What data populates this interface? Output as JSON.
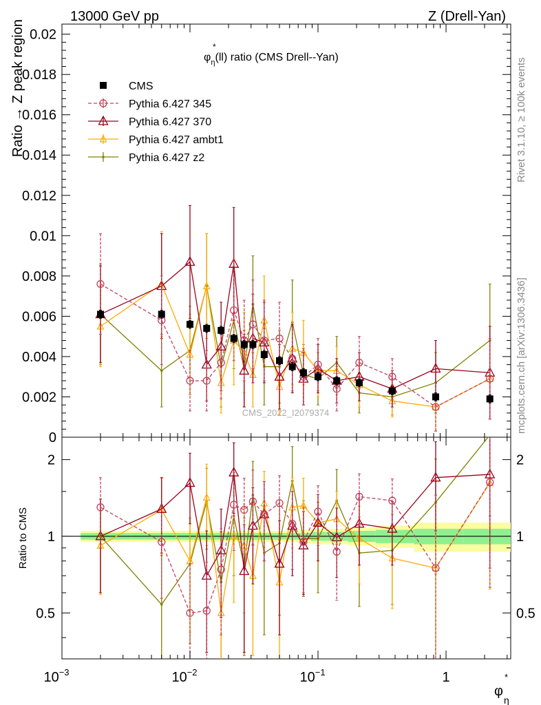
{
  "header": {
    "left": "13000 GeV pp",
    "right": "Z (Drell-Yan)"
  },
  "side": {
    "rivet": "Rivet 3.1.10, ≥ 100k events",
    "mcplots": "mcplots.cern.ch [arXiv:1306.3436]"
  },
  "colors": {
    "cms": "#000000",
    "p345": "#c0405f",
    "p370": "#99001a",
    "ambt1": "#ffaa00",
    "z2": "#808000",
    "band_inner": "#90f090",
    "band_outer": "#fcfca0"
  },
  "chart_data": [
    {
      "type": "line",
      "panel": "main",
      "title": "φ*η(ll) ratio (CMS Drell--Yan)",
      "title_parts": {
        "phi": "φ",
        "sup": "*",
        "sub": "η",
        "rest": "(ll) ratio (CMS Drell--Yan)"
      },
      "ylabel": "Ratio → Z peak region",
      "watermark": "CMS_2022_I2079374",
      "xscale": "log",
      "xlim": [
        0.001,
        3.2
      ],
      "ylim": [
        0,
        0.0205
      ],
      "yticks": [
        "0",
        "0.002",
        "0.004",
        "0.006",
        "0.008",
        "0.01",
        "0.012",
        "0.014",
        "0.016",
        "0.018",
        "0.02"
      ],
      "ytick_values": [
        0,
        0.002,
        0.004,
        0.006,
        0.008,
        0.01,
        0.012,
        0.014,
        0.016,
        0.018,
        0.02
      ],
      "legend_position": "top-left",
      "x": [
        0.002,
        0.006,
        0.01,
        0.0135,
        0.0175,
        0.022,
        0.0265,
        0.031,
        0.038,
        0.05,
        0.063,
        0.077,
        0.1,
        0.14,
        0.21,
        0.38,
        0.83,
        2.2
      ],
      "series": [
        {
          "name": "CMS",
          "key": "cms",
          "values": [
            0.0061,
            0.0061,
            0.0056,
            0.0054,
            0.0053,
            0.0049,
            0.0046,
            0.0046,
            0.0041,
            0.0038,
            0.0035,
            0.0032,
            0.003,
            0.0028,
            0.0027,
            0.0023,
            0.002,
            0.0019
          ],
          "errors": [
            0.0002,
            0.0002,
            0.0002,
            0.0002,
            0.0002,
            0.0002,
            0.0002,
            0.0002,
            0.0002,
            0.0002,
            0.0002,
            0.0002,
            0.0002,
            0.0002,
            0.0002,
            0.0002,
            0.0002,
            0.0002
          ]
        },
        {
          "name": "Pythia 6.427 345",
          "key": "p345",
          "values": [
            0.0076,
            0.0058,
            0.0028,
            0.0028,
            0.0037,
            0.0063,
            0.0048,
            0.0056,
            0.0048,
            0.0049,
            0.0039,
            0.003,
            0.0036,
            0.0024,
            0.0037,
            0.003,
            0.0015,
            0.0029
          ],
          "errors": [
            0.0025,
            0.0022,
            0.0015,
            0.0015,
            0.0018,
            0.0025,
            0.002,
            0.0022,
            0.002,
            0.0018,
            0.0016,
            0.0014,
            0.0013,
            0.0011,
            0.0013,
            0.0009,
            0.0012,
            0.002
          ]
        },
        {
          "name": "Pythia 6.427 370",
          "key": "p370",
          "values": [
            0.0061,
            0.0075,
            0.0087,
            0.0036,
            0.0045,
            0.0086,
            0.0033,
            0.0049,
            0.0047,
            0.003,
            0.0039,
            0.0029,
            0.0034,
            0.0028,
            0.003,
            0.0024,
            0.0034,
            0.0032
          ],
          "errors": [
            0.0024,
            0.0026,
            0.0028,
            0.0018,
            0.0022,
            0.0028,
            0.0018,
            0.0022,
            0.002,
            0.0016,
            0.0017,
            0.0013,
            0.0012,
            0.0011,
            0.0012,
            0.0009,
            0.0014,
            0.0023
          ]
        },
        {
          "name": "Pythia 6.427 ambt1",
          "key": "ambt1",
          "values": [
            0.0055,
            0.0076,
            0.0041,
            0.0075,
            0.0027,
            0.0048,
            0.0042,
            0.0031,
            0.0058,
            0.0025,
            0.0044,
            0.0042,
            0.0033,
            0.0033,
            0.0026,
            0.0018,
            0.0015,
            0.0029
          ],
          "errors": [
            0.002,
            0.0026,
            0.002,
            0.0026,
            0.0015,
            0.0022,
            0.002,
            0.0016,
            0.0022,
            0.0014,
            0.0018,
            0.0016,
            0.0013,
            0.0012,
            0.0011,
            0.0008,
            0.0012,
            0.002
          ]
        },
        {
          "name": "Pythia 6.427 z2",
          "key": "z2",
          "values": [
            0.0061,
            0.0033,
            0.0043,
            0.0075,
            0.0035,
            0.0058,
            0.0034,
            0.0066,
            0.0035,
            0.0035,
            0.0057,
            0.0031,
            0.0029,
            0.0037,
            0.0022,
            0.002,
            0.0027,
            0.0048
          ],
          "errors": [
            0.0025,
            0.0018,
            0.0022,
            0.0026,
            0.002,
            0.0024,
            0.0019,
            0.0024,
            0.0019,
            0.0018,
            0.0021,
            0.0015,
            0.0013,
            0.0013,
            0.001,
            0.0009,
            0.0015,
            0.0028
          ]
        }
      ]
    },
    {
      "type": "line",
      "panel": "ratio",
      "ylabel": "Ratio to CMS",
      "xlabel_parts": {
        "phi": "φ",
        "sup": "*",
        "sub": "η"
      },
      "xscale": "log",
      "xlim": [
        0.001,
        3.2
      ],
      "ylim": [
        0.33,
        2.45
      ],
      "yscale": "log",
      "xticks": [
        {
          "base": "10",
          "exp": "−3",
          "value": 0.001
        },
        {
          "base": "10",
          "exp": "−2",
          "value": 0.01
        },
        {
          "base": "10",
          "exp": "−1",
          "value": 0.1
        },
        {
          "base": "1",
          "exp": "",
          "value": 1
        }
      ],
      "yticks": [
        "0.5",
        "1",
        "2"
      ],
      "ytick_values": [
        0.5,
        1,
        2
      ],
      "band_inner_halfwidth": [
        0.03,
        0.03,
        0.03,
        0.03,
        0.03,
        0.03,
        0.03,
        0.03,
        0.03,
        0.03,
        0.03,
        0.03,
        0.04,
        0.04,
        0.05,
        0.06,
        0.07,
        0.07
      ],
      "band_outer_halfwidth": [
        0.05,
        0.05,
        0.05,
        0.05,
        0.05,
        0.05,
        0.05,
        0.05,
        0.05,
        0.05,
        0.05,
        0.06,
        0.07,
        0.07,
        0.08,
        0.1,
        0.13,
        0.13
      ],
      "series": [
        {
          "name": "CMS",
          "key": "cms",
          "values": [
            1,
            1,
            1,
            1,
            1,
            1,
            1,
            1,
            1,
            1,
            1,
            1,
            1,
            1,
            1,
            1,
            1,
            1
          ]
        },
        {
          "name": "Pythia 6.427 345",
          "key": "p345",
          "values": [
            1.3,
            0.95,
            0.5,
            0.51,
            0.74,
            1.33,
            1.27,
            1.37,
            1.22,
            1.35,
            1.12,
            0.95,
            1.25,
            0.87,
            1.43,
            1.38,
            0.75,
            1.63
          ],
          "errors": [
            0.4,
            0.38,
            0.28,
            0.28,
            0.33,
            0.45,
            0.42,
            0.45,
            0.42,
            0.38,
            0.38,
            0.35,
            0.33,
            0.31,
            0.33,
            0.3,
            0.7,
            1.0
          ]
        },
        {
          "name": "Pythia 6.427 370",
          "key": "p370",
          "values": [
            1.0,
            1.28,
            1.62,
            0.7,
            0.88,
            1.78,
            0.73,
            1.1,
            1.22,
            0.78,
            1.1,
            0.92,
            1.13,
            0.99,
            1.12,
            1.07,
            1.7,
            1.75
          ],
          "errors": [
            0.4,
            0.42,
            0.5,
            0.35,
            0.4,
            0.55,
            0.38,
            0.45,
            0.42,
            0.37,
            0.4,
            0.33,
            0.33,
            0.3,
            0.35,
            0.3,
            0.65,
            1.0
          ]
        },
        {
          "name": "Pythia 6.427 ambt1",
          "key": "ambt1",
          "values": [
            0.92,
            1.27,
            0.8,
            1.42,
            0.5,
            1.0,
            0.92,
            0.7,
            1.35,
            0.66,
            1.3,
            1.32,
            1.13,
            1.17,
            0.98,
            0.82,
            0.75,
            1.62
          ],
          "errors": [
            0.33,
            0.42,
            0.38,
            0.5,
            0.28,
            0.45,
            0.42,
            0.36,
            0.45,
            0.35,
            0.4,
            0.37,
            0.33,
            0.33,
            0.33,
            0.3,
            0.6,
            1.0
          ]
        },
        {
          "name": "Pythia 6.427 z2",
          "key": "z2",
          "values": [
            1.0,
            0.54,
            0.78,
            1.37,
            0.66,
            1.2,
            0.76,
            1.45,
            0.86,
            0.94,
            1.65,
            0.98,
            0.98,
            1.38,
            0.86,
            0.88,
            1.36,
            2.5
          ],
          "errors": [
            0.4,
            0.3,
            0.4,
            0.48,
            0.38,
            0.5,
            0.42,
            0.52,
            0.45,
            0.45,
            0.6,
            0.4,
            0.38,
            0.45,
            0.33,
            0.34,
            0.65,
            1.3
          ]
        }
      ]
    }
  ]
}
